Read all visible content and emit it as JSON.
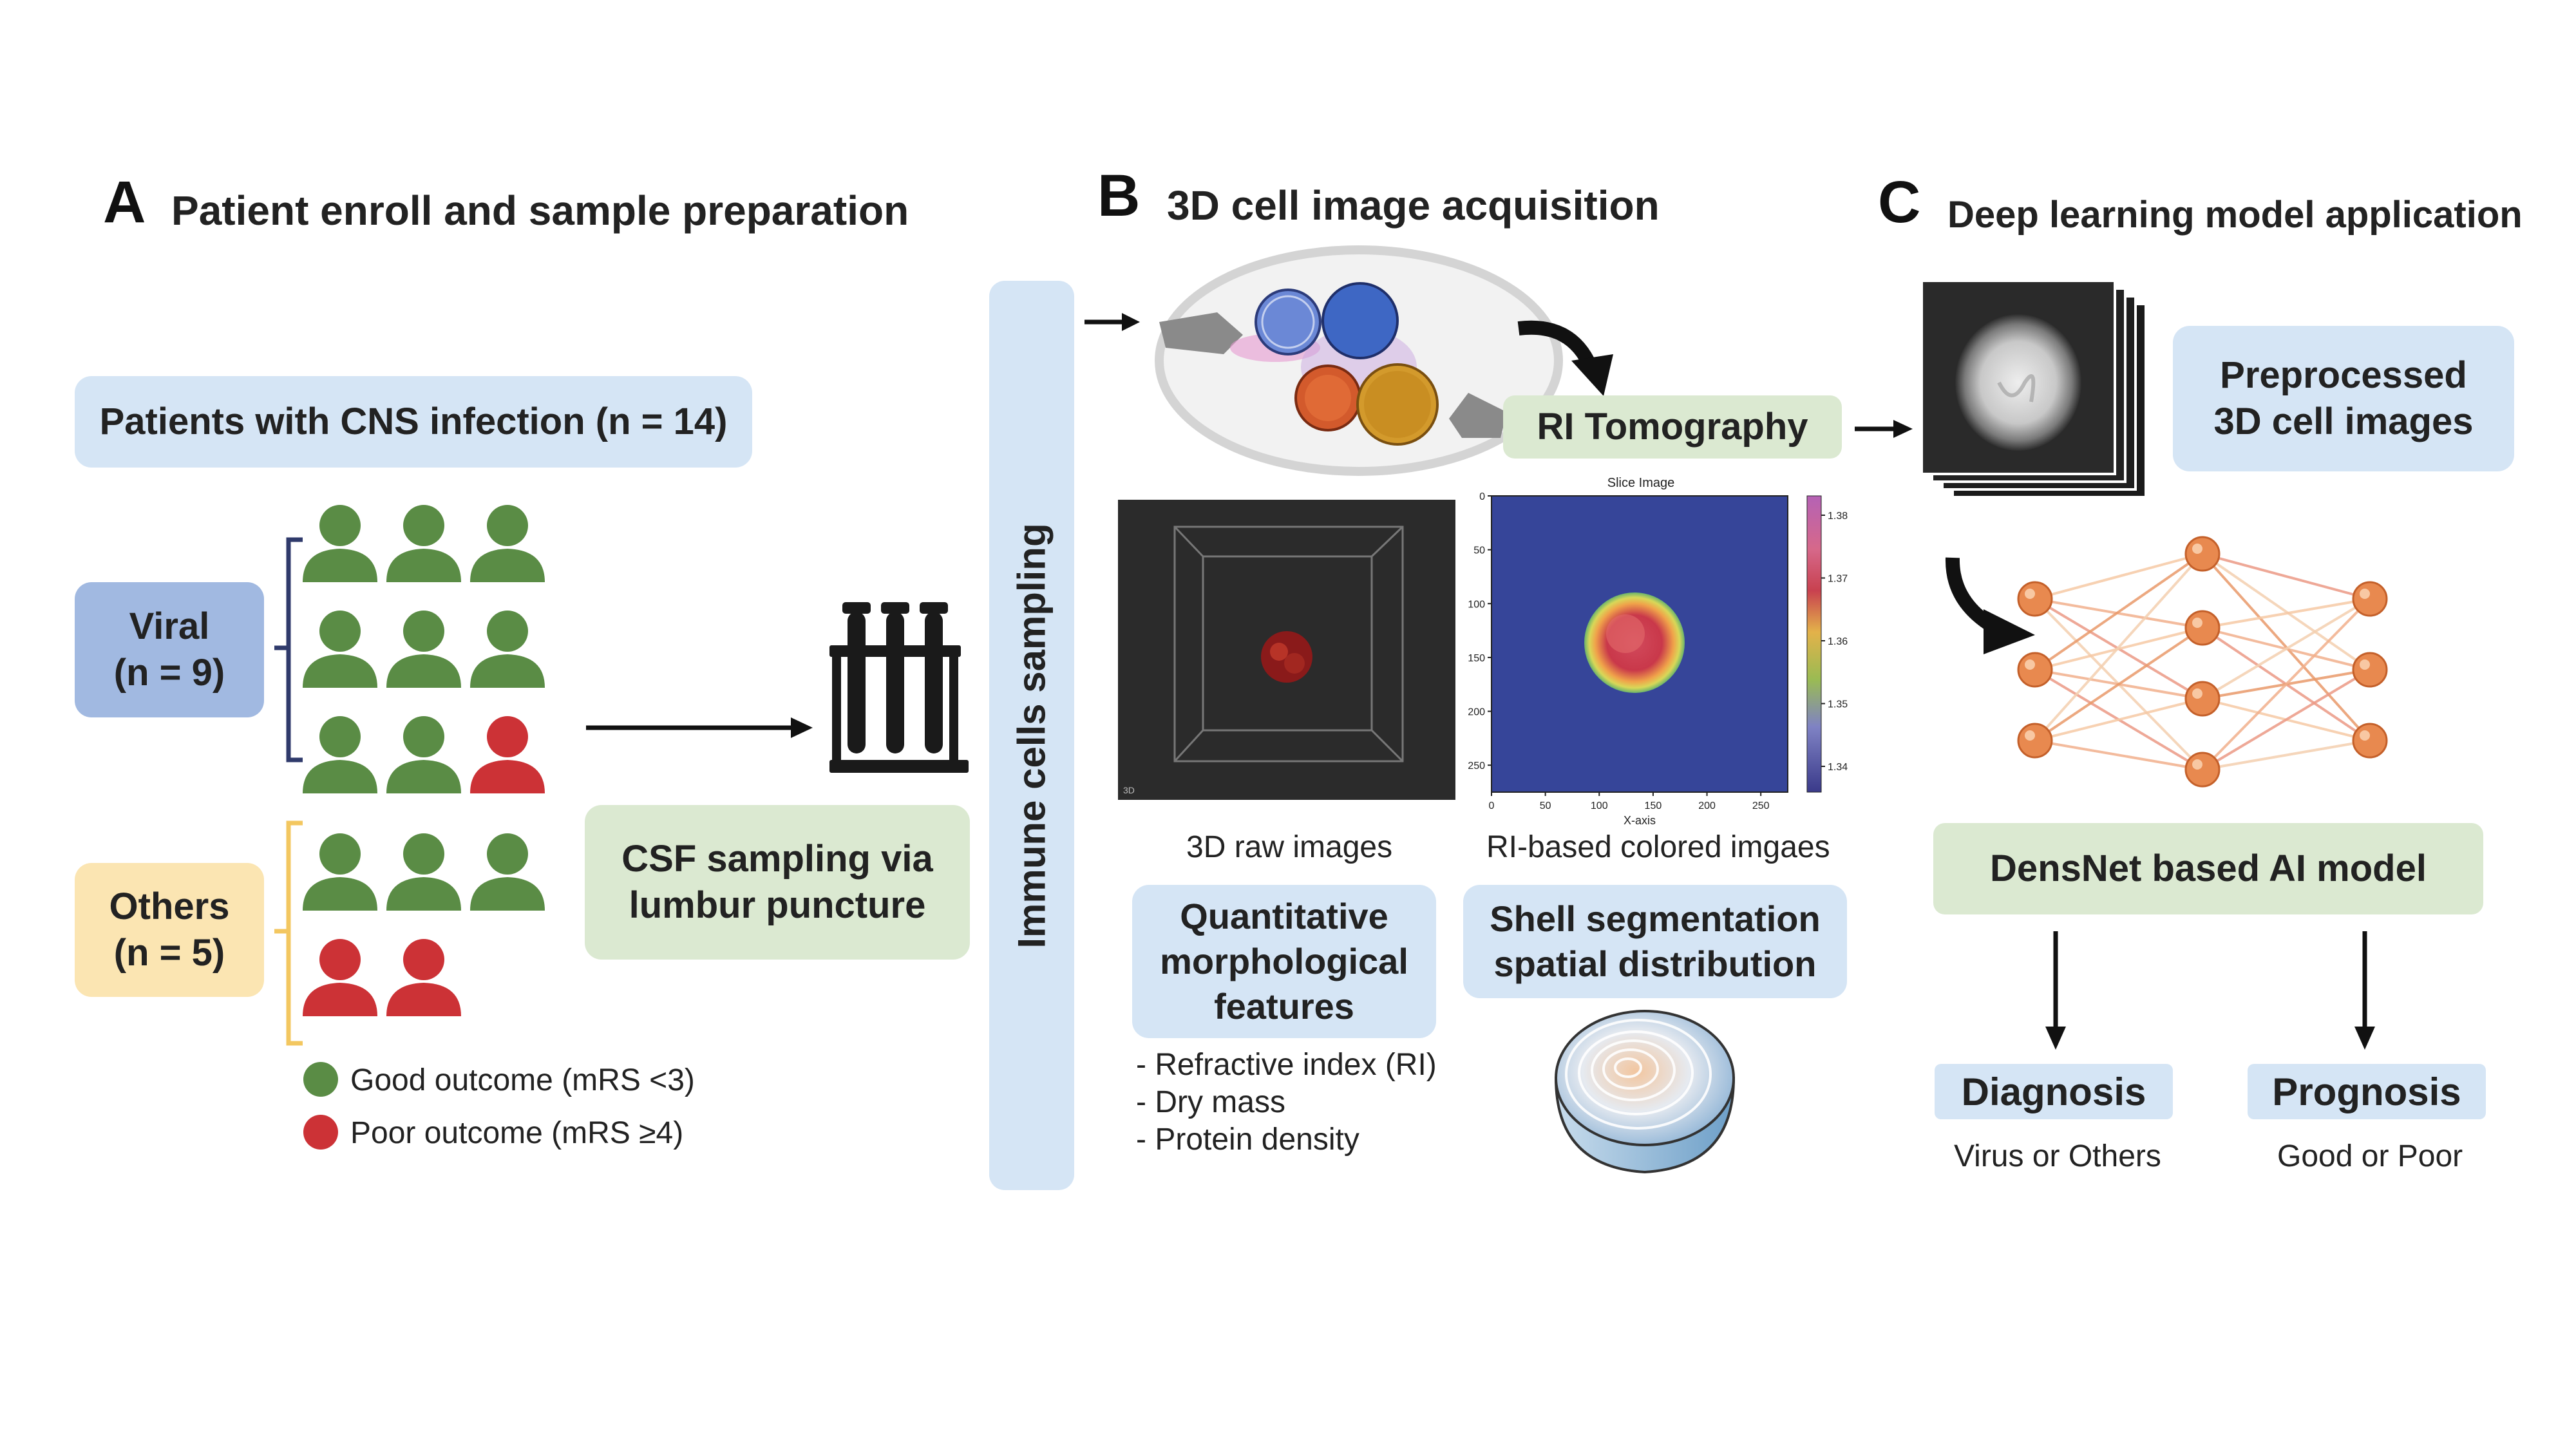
{
  "panels": {
    "a": {
      "letter": "A",
      "title": "Patient enroll and sample preparation"
    },
    "b": {
      "letter": "B",
      "title": "3D cell image acquisition"
    },
    "c": {
      "letter": "C",
      "title": "Deep learning model application"
    }
  },
  "panel_a": {
    "patients_label": "Patients with CNS infection (n = 14)",
    "viral_label": "Viral",
    "viral_count": "(n = 9)",
    "others_label": "Others",
    "others_count": "(n = 5)",
    "csf_line1": "CSF sampling via",
    "csf_line2": "lumbur puncture",
    "legend_good": "Good outcome (mRS <3)",
    "legend_poor": "Poor outcome  (mRS ≥4)",
    "viral_outcomes": [
      "good",
      "good",
      "good",
      "good",
      "good",
      "good",
      "good",
      "good",
      "poor"
    ],
    "others_outcomes": [
      "good",
      "good",
      "good",
      "poor",
      "poor"
    ]
  },
  "sampling_label": "Immune cells sampling",
  "panel_b": {
    "ri_tomography": "RI Tomography",
    "raw_caption": "3D raw images",
    "colored_caption": "RI-based colored imgaes",
    "slice_title": "Slice Image",
    "x_axis_label": "X-axis",
    "x_ticks": [
      "0",
      "50",
      "100",
      "150",
      "200",
      "250"
    ],
    "y_ticks": [
      "0",
      "50",
      "100",
      "150",
      "200",
      "250"
    ],
    "colorbar_ticks": [
      "1.38",
      "1.37",
      "1.36",
      "1.35",
      "1.34"
    ],
    "raw_corner_label": "3D",
    "quant_line1": "Quantitative",
    "quant_line2": "morphological",
    "quant_line3": "features",
    "feature1": "- Refractive index (RI)",
    "feature2": "- Dry mass",
    "feature3": "- Protein density",
    "shell_line1": "Shell segmentation",
    "shell_line2": "spatial distribution"
  },
  "panel_c": {
    "preprocessed_line1": "Preprocessed",
    "preprocessed_line2": "3D cell images",
    "model_label": "DensNet based AI model",
    "diagnosis_label": "Diagnosis",
    "diagnosis_sub": "Virus or Others",
    "prognosis_label": "Prognosis",
    "prognosis_sub": "Good or Poor"
  },
  "colors": {
    "good": "#5a8c45",
    "poor": "#cc3236",
    "bracket_viral": "#2f3a6b",
    "bracket_others": "#f3c760",
    "node": "#e8894f"
  }
}
